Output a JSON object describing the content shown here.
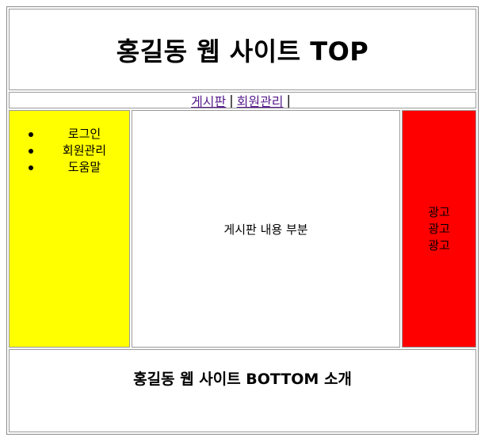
{
  "header": {
    "title": "홍길동 웹 사이트 TOP"
  },
  "nav": {
    "links": [
      {
        "label": "게시판"
      },
      {
        "label": "회원관리"
      }
    ],
    "separator": "|"
  },
  "sidebar": {
    "items": [
      {
        "label": "로그인"
      },
      {
        "label": "회원관리"
      },
      {
        "label": "도움말"
      }
    ],
    "background": "#ffff00"
  },
  "main": {
    "content_text": "게시판 내용 부분"
  },
  "ads": {
    "items": [
      {
        "label": "광고"
      },
      {
        "label": "광고"
      },
      {
        "label": "광고"
      }
    ],
    "background": "#ff0000"
  },
  "footer": {
    "text": "홍길동 웹 사이트 BOTTOM 소개"
  }
}
